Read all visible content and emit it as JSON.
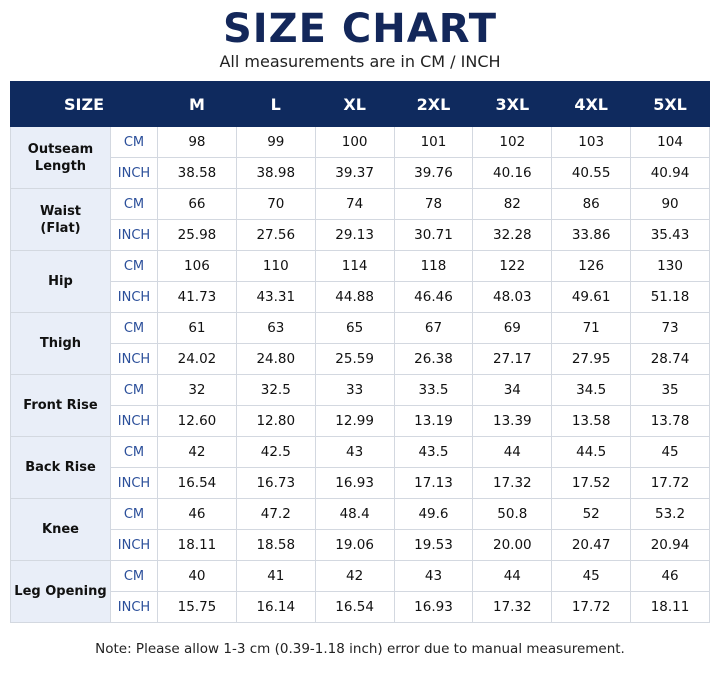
{
  "header": {
    "title": "SIZE CHART",
    "subtitle": "All measurements are in CM / INCH"
  },
  "table": {
    "columns": [
      "SIZE",
      "M",
      "L",
      "XL",
      "2XL",
      "3XL",
      "4XL",
      "5XL"
    ],
    "groups": [
      {
        "name": "Outseam\nLength",
        "rows": [
          {
            "unit": "CM",
            "values": [
              "98",
              "99",
              "100",
              "101",
              "102",
              "103",
              "104"
            ]
          },
          {
            "unit": "INCH",
            "values": [
              "38.58",
              "38.98",
              "39.37",
              "39.76",
              "40.16",
              "40.55",
              "40.94"
            ]
          }
        ]
      },
      {
        "name": "Waist\n(Flat)",
        "rows": [
          {
            "unit": "CM",
            "values": [
              "66",
              "70",
              "74",
              "78",
              "82",
              "86",
              "90"
            ]
          },
          {
            "unit": "INCH",
            "values": [
              "25.98",
              "27.56",
              "29.13",
              "30.71",
              "32.28",
              "33.86",
              "35.43"
            ]
          }
        ]
      },
      {
        "name": "Hip",
        "rows": [
          {
            "unit": "CM",
            "values": [
              "106",
              "110",
              "114",
              "118",
              "122",
              "126",
              "130"
            ]
          },
          {
            "unit": "INCH",
            "values": [
              "41.73",
              "43.31",
              "44.88",
              "46.46",
              "48.03",
              "49.61",
              "51.18"
            ]
          }
        ]
      },
      {
        "name": "Thigh",
        "rows": [
          {
            "unit": "CM",
            "values": [
              "61",
              "63",
              "65",
              "67",
              "69",
              "71",
              "73"
            ]
          },
          {
            "unit": "INCH",
            "values": [
              "24.02",
              "24.80",
              "25.59",
              "26.38",
              "27.17",
              "27.95",
              "28.74"
            ]
          }
        ]
      },
      {
        "name": "Front Rise",
        "rows": [
          {
            "unit": "CM",
            "values": [
              "32",
              "32.5",
              "33",
              "33.5",
              "34",
              "34.5",
              "35"
            ]
          },
          {
            "unit": "INCH",
            "values": [
              "12.60",
              "12.80",
              "12.99",
              "13.19",
              "13.39",
              "13.58",
              "13.78"
            ]
          }
        ]
      },
      {
        "name": "Back Rise",
        "rows": [
          {
            "unit": "CM",
            "values": [
              "42",
              "42.5",
              "43",
              "43.5",
              "44",
              "44.5",
              "45"
            ]
          },
          {
            "unit": "INCH",
            "values": [
              "16.54",
              "16.73",
              "16.93",
              "17.13",
              "17.32",
              "17.52",
              "17.72"
            ]
          }
        ]
      },
      {
        "name": "Knee",
        "rows": [
          {
            "unit": "CM",
            "values": [
              "46",
              "47.2",
              "48.4",
              "49.6",
              "50.8",
              "52",
              "53.2"
            ]
          },
          {
            "unit": "INCH",
            "values": [
              "18.11",
              "18.58",
              "19.06",
              "19.53",
              "20.00",
              "20.47",
              "20.94"
            ]
          }
        ]
      },
      {
        "name": "Leg Opening",
        "rows": [
          {
            "unit": "CM",
            "values": [
              "40",
              "41",
              "42",
              "43",
              "44",
              "45",
              "46"
            ]
          },
          {
            "unit": "INCH",
            "values": [
              "15.75",
              "16.14",
              "16.54",
              "16.93",
              "17.32",
              "17.72",
              "18.11"
            ]
          }
        ]
      }
    ]
  },
  "note": "Note: Please allow 1-3 cm (0.39-1.18 inch) error due to manual measurement."
}
